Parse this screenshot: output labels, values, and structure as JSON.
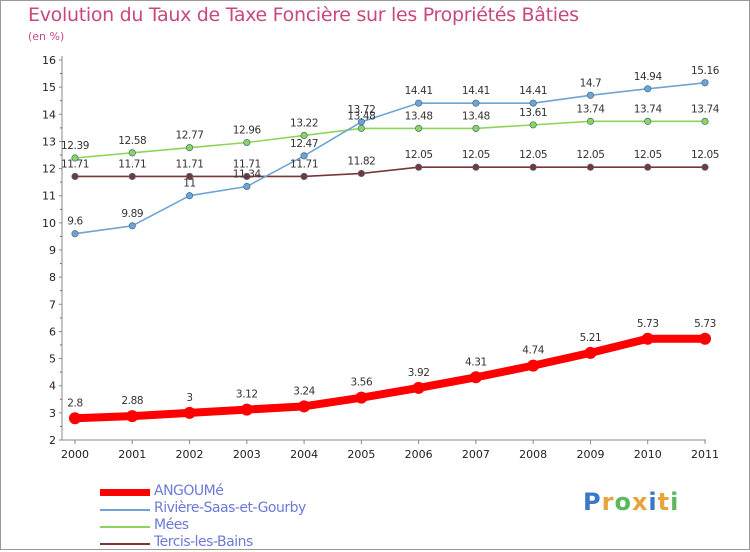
{
  "title": "Evolution du Taux de Taxe Foncière sur les Propriétés Bâties",
  "unit_label": "(en %)",
  "logo": {
    "text": "Proxiti",
    "colors": [
      "#3a78c9",
      "#e8a33a",
      "#5cb85c",
      "#e8a33a",
      "#3a78c9",
      "#e8a33a",
      "#5cb85c"
    ]
  },
  "chart_data": {
    "type": "line",
    "title": "Evolution du Taux de Taxe Foncière sur les Propriétés Bâties",
    "ylabel": "(en %)",
    "xlabel": "",
    "x": [
      "2000",
      "2001",
      "2002",
      "2003",
      "2004",
      "2005",
      "2006",
      "2007",
      "2008",
      "2009",
      "2010",
      "2011"
    ],
    "ylim": [
      2,
      16
    ],
    "yticks": [
      "2",
      "3",
      "4",
      "5",
      "6",
      "7",
      "8",
      "9",
      "10",
      "11",
      "12",
      "13",
      "14",
      "15",
      "16"
    ],
    "grid": false,
    "series": [
      {
        "name": "ANGOUMé",
        "color": "#ff0000",
        "values": [
          2.8,
          2.88,
          3,
          3.12,
          3.24,
          3.56,
          3.92,
          4.31,
          4.74,
          5.21,
          5.73,
          5.73
        ],
        "labels": [
          "2.8",
          "2.88",
          "3",
          "3.12",
          "3.24",
          "3.56",
          "3.92",
          "4.31",
          "4.74",
          "5.21",
          "5.73",
          "5.73"
        ]
      },
      {
        "name": "Rivière-Saas-et-Gourby",
        "color": "#6fa3d4",
        "values": [
          9.6,
          9.89,
          11,
          11.34,
          12.47,
          13.72,
          14.41,
          14.41,
          14.41,
          14.7,
          14.94,
          15.16
        ],
        "labels": [
          "9.6",
          "9.89",
          "11",
          "11.34",
          "12.47",
          "13.72",
          "14.41",
          "14.41",
          "14.41",
          "14.7",
          "14.94",
          "15.16"
        ]
      },
      {
        "name": "Mées",
        "color": "#8fd45a",
        "values": [
          12.39,
          12.58,
          12.77,
          12.96,
          13.22,
          13.48,
          13.48,
          13.48,
          13.61,
          13.74,
          13.74,
          13.74
        ],
        "labels": [
          "12.39",
          "12.58",
          "12.77",
          "12.96",
          "13.22",
          "13.48",
          "13.48",
          "13.48",
          "13.61",
          "13.74",
          "13.74",
          "13.74"
        ]
      },
      {
        "name": "Tercis-les-Bains",
        "color": "#7a3636",
        "values": [
          11.71,
          11.71,
          11.71,
          11.71,
          11.71,
          11.82,
          12.05,
          12.05,
          12.05,
          12.05,
          12.05,
          12.05
        ],
        "labels": [
          "11.71",
          "11.71",
          "11.71",
          "11.71",
          "11.71",
          "11.82",
          "12.05",
          "12.05",
          "12.05",
          "12.05",
          "12.05",
          "12.05"
        ]
      }
    ]
  }
}
